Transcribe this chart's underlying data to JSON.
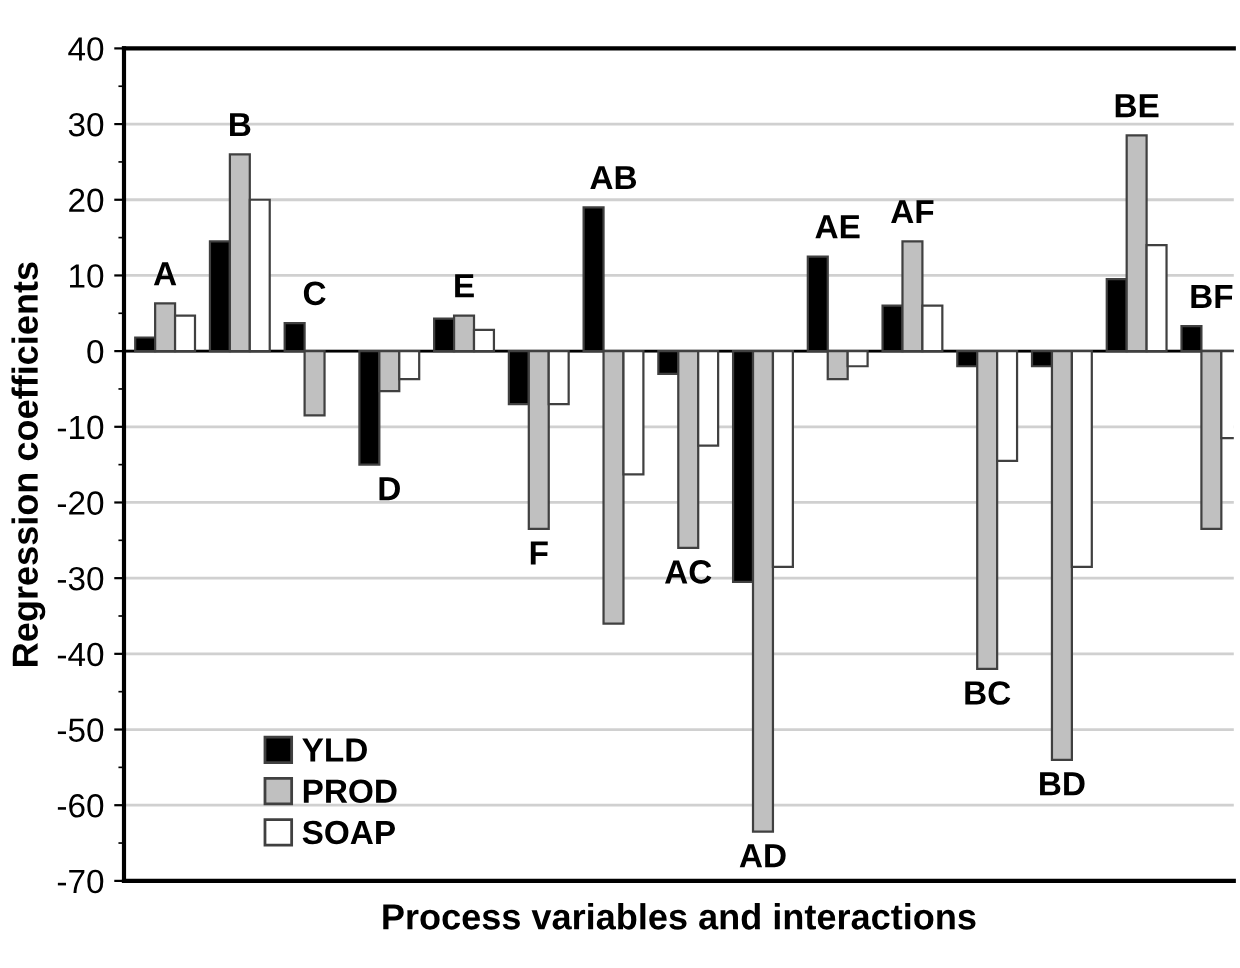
{
  "chart_data": {
    "type": "bar",
    "xlabel": "Process variables and interactions",
    "ylabel": "Regression coefficients",
    "categories": [
      "A",
      "B",
      "C",
      "D",
      "E",
      "F",
      "AB",
      "AC",
      "AD",
      "AE",
      "AF",
      "BC",
      "BD",
      "BE",
      "BF"
    ],
    "series": [
      {
        "name": "YLD",
        "color": "#000000",
        "values": [
          1.8,
          14.5,
          3.7,
          -15,
          4.3,
          -7,
          19,
          -3,
          -30.5,
          12.5,
          6,
          -2,
          -2,
          9.5,
          3.3
        ]
      },
      {
        "name": "PROD",
        "color": "#c0c0c0",
        "values": [
          6.3,
          26,
          -8.5,
          -5.3,
          4.7,
          -23.5,
          -36,
          -26,
          -63.5,
          -3.7,
          14.5,
          -42,
          -54,
          28.5,
          -23.5
        ]
      },
      {
        "name": "SOAP",
        "color": "#ffffff",
        "values": [
          4.7,
          20,
          null,
          -3.7,
          2.8,
          -7,
          -16.3,
          -12.5,
          -28.5,
          -2,
          6,
          -14.5,
          -28.5,
          14,
          -11.5
        ]
      }
    ],
    "ylim": [
      -70,
      40
    ],
    "yticks": [
      -70,
      -60,
      -50,
      -40,
      -30,
      -20,
      -10,
      0,
      10,
      20,
      30,
      40
    ],
    "grid": "y",
    "legend": "bottom left"
  }
}
